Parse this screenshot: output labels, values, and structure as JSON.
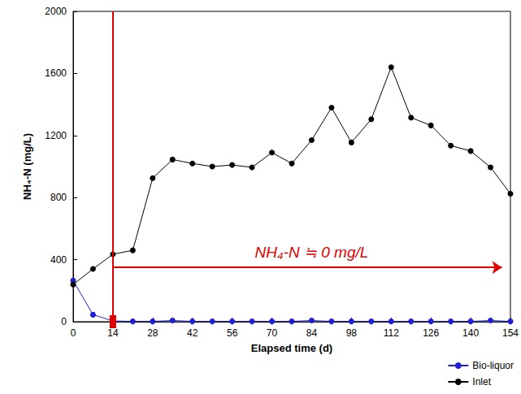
{
  "chart_data": {
    "type": "line",
    "x_label": "Elapsed time (d)",
    "y_label": "NH₄-N (mg/L)",
    "xlim": [
      0,
      154
    ],
    "xticks": [
      0,
      14,
      28,
      42,
      56,
      70,
      84,
      98,
      112,
      126,
      140,
      154
    ],
    "ylim": [
      0,
      2000
    ],
    "yticks": [
      0,
      400,
      800,
      1200,
      1600,
      2000
    ],
    "grid": false,
    "legend": "lower right",
    "marker": "circle",
    "series": [
      {
        "name": "Bio-liquor",
        "color": "#1f1fd6",
        "x": [
          0,
          7,
          14,
          21,
          28,
          35,
          42,
          49,
          56,
          63,
          70,
          77,
          84,
          91,
          98,
          105,
          112,
          119,
          126,
          133,
          140,
          147,
          154
        ],
        "values": [
          265,
          45,
          5,
          2,
          2,
          8,
          2,
          2,
          2,
          2,
          2,
          2,
          8,
          2,
          2,
          2,
          2,
          2,
          2,
          2,
          2,
          8,
          2
        ]
      },
      {
        "name": "Inlet",
        "color": "#000000",
        "x": [
          0,
          7,
          14,
          21,
          28,
          35,
          42,
          49,
          56,
          63,
          70,
          77,
          84,
          91,
          98,
          105,
          112,
          119,
          126,
          133,
          140,
          147,
          154
        ],
        "values": [
          240,
          340,
          435,
          460,
          925,
          1045,
          1020,
          1000,
          1010,
          995,
          1090,
          1020,
          1170,
          1380,
          1155,
          1305,
          1640,
          1315,
          1265,
          1135,
          1100,
          995,
          825
        ]
      }
    ],
    "annotations": [
      {
        "type": "vline",
        "x": 14,
        "color": "#e00000"
      },
      {
        "type": "arrow",
        "x": [
          14,
          151
        ],
        "y": 350,
        "color": "#e00000"
      },
      {
        "type": "text",
        "text": "NH₄-N ≒ 0 mg/L",
        "x": 84,
        "y": 450,
        "color": "#e00000"
      }
    ]
  }
}
